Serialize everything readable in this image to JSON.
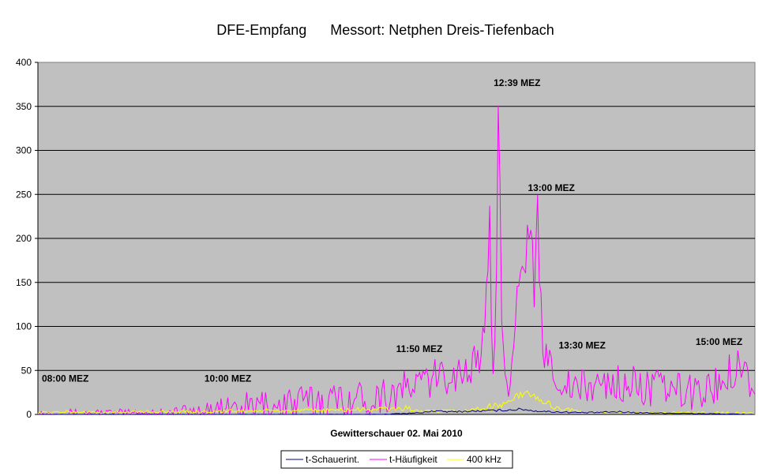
{
  "chart_data": {
    "type": "line",
    "title": "DFE-Empfang      Messort: Netphen Dreis-Tiefenbach",
    "xlabel": "Gewitterschauer 02. Mai 2010",
    "ylabel": "",
    "ylim": [
      0,
      400
    ],
    "yticks": [
      "0",
      "50",
      "100",
      "150",
      "200",
      "250",
      "300",
      "350",
      "400"
    ],
    "grid": true,
    "legend_position": "bottom-center",
    "plot_background": "#c0c0c0",
    "x_sample_count": 420,
    "annotations": [
      {
        "text": "08:00 MEZ",
        "x": 0,
        "y": 37
      },
      {
        "text": "10:00 MEZ",
        "x": 95,
        "y": 37
      },
      {
        "text": "11:50 MEZ",
        "x": 207,
        "y": 71
      },
      {
        "text": "12:39 MEZ",
        "x": 264,
        "y": 373
      },
      {
        "text": "13:00 MEZ",
        "x": 284,
        "y": 254
      },
      {
        "text": "13:30 MEZ",
        "x": 302,
        "y": 75
      },
      {
        "text": "15:00 MEZ",
        "x": 382,
        "y": 79
      }
    ],
    "series": [
      {
        "name": "t-Schauerint.",
        "color": "#000080",
        "keypoints": [
          [
            0,
            0
          ],
          [
            200,
            0
          ],
          [
            225,
            2
          ],
          [
            230,
            4
          ],
          [
            240,
            3
          ],
          [
            260,
            4
          ],
          [
            275,
            5
          ],
          [
            283,
            6
          ],
          [
            290,
            4
          ],
          [
            300,
            3
          ],
          [
            320,
            2
          ],
          [
            340,
            3
          ],
          [
            350,
            2
          ],
          [
            419,
            0
          ]
        ],
        "noise": 2
      },
      {
        "name": "t-Häufigkeit",
        "color": "#ff00ff",
        "keypoints": [
          [
            0,
            1
          ],
          [
            50,
            1
          ],
          [
            80,
            2
          ],
          [
            110,
            5
          ],
          [
            140,
            10
          ],
          [
            165,
            15
          ],
          [
            190,
            18
          ],
          [
            200,
            22
          ],
          [
            210,
            25
          ],
          [
            216,
            30
          ],
          [
            222,
            35
          ],
          [
            230,
            40
          ],
          [
            240,
            45
          ],
          [
            250,
            50
          ],
          [
            258,
            60
          ],
          [
            263,
            150
          ],
          [
            264,
            220
          ],
          [
            265,
            80
          ],
          [
            266,
            40
          ],
          [
            268,
            150
          ],
          [
            269,
            350
          ],
          [
            270,
            275
          ],
          [
            271,
            120
          ],
          [
            272,
            60
          ],
          [
            275,
            40
          ],
          [
            279,
            100
          ],
          [
            280,
            160
          ],
          [
            282,
            170
          ],
          [
            284,
            150
          ],
          [
            286,
            210
          ],
          [
            287,
            180
          ],
          [
            289,
            200
          ],
          [
            290,
            120
          ],
          [
            292,
            230
          ],
          [
            293,
            160
          ],
          [
            295,
            80
          ],
          [
            298,
            60
          ],
          [
            301,
            55
          ],
          [
            305,
            40
          ],
          [
            310,
            30
          ],
          [
            320,
            30
          ],
          [
            330,
            35
          ],
          [
            340,
            35
          ],
          [
            360,
            30
          ],
          [
            380,
            25
          ],
          [
            395,
            30
          ],
          [
            405,
            50
          ],
          [
            410,
            60
          ],
          [
            415,
            45
          ],
          [
            419,
            30
          ]
        ],
        "noise": 22
      },
      {
        "name": "400 kHz",
        "color": "#ffff00",
        "keypoints": [
          [
            0,
            2
          ],
          [
            20,
            3
          ],
          [
            40,
            2
          ],
          [
            60,
            3
          ],
          [
            90,
            3
          ],
          [
            120,
            4
          ],
          [
            150,
            4
          ],
          [
            180,
            5
          ],
          [
            200,
            6
          ],
          [
            215,
            7
          ],
          [
            225,
            3
          ],
          [
            250,
            4
          ],
          [
            270,
            10
          ],
          [
            280,
            20
          ],
          [
            285,
            25
          ],
          [
            290,
            20
          ],
          [
            300,
            10
          ],
          [
            310,
            5
          ],
          [
            320,
            2
          ],
          [
            360,
            2
          ],
          [
            380,
            2
          ],
          [
            400,
            2
          ],
          [
            419,
            1
          ]
        ],
        "noise": 4
      }
    ]
  }
}
